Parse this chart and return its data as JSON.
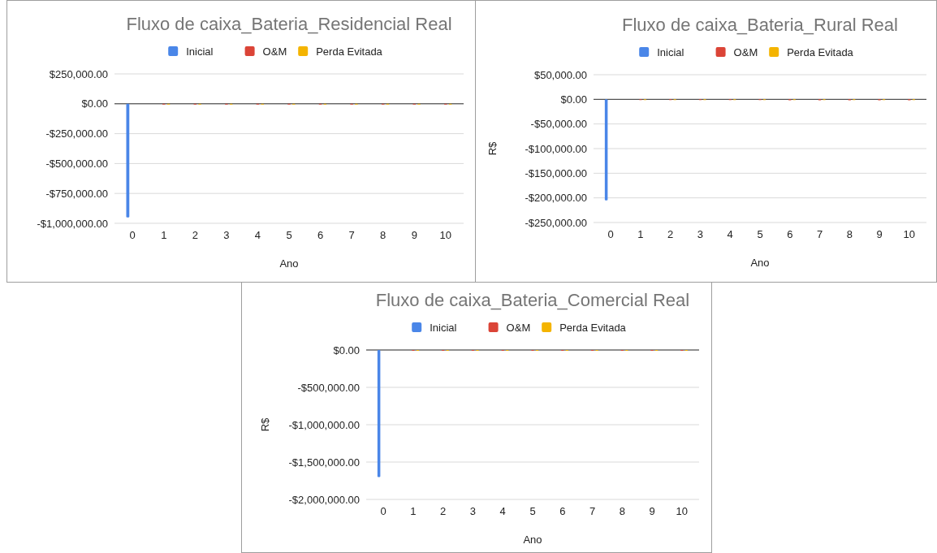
{
  "chart_data": [
    {
      "type": "bar",
      "title": "Fluxo de caixa_Bateria_Residencial Real",
      "xlabel": "Ano",
      "categories": [
        "0",
        "1",
        "2",
        "3",
        "4",
        "5",
        "6",
        "7",
        "8",
        "9",
        "10"
      ],
      "series": [
        {
          "name": "Inicial",
          "color": "#4a86e8",
          "values": [
            -950000,
            null,
            null,
            null,
            null,
            null,
            null,
            null,
            null,
            null,
            null
          ]
        },
        {
          "name": "O&M",
          "color": "#db4437",
          "values": [
            null,
            -3000,
            -3000,
            -3000,
            -3000,
            -3000,
            -3000,
            -3000,
            -3000,
            -3000,
            -3000
          ]
        },
        {
          "name": "Perda Evitada",
          "color": "#f4b400",
          "values": [
            null,
            1000,
            1000,
            1000,
            1000,
            1000,
            1000,
            1000,
            1000,
            1000,
            1000
          ]
        }
      ],
      "ylim": [
        -1000000,
        250000
      ],
      "yticks": [
        {
          "value": 250000,
          "label": "$250,000.00"
        },
        {
          "value": 0,
          "label": "$0.00"
        },
        {
          "value": -250000,
          "label": "-$250,000.00"
        },
        {
          "value": -500000,
          "label": "-$500,000.00"
        },
        {
          "value": -750000,
          "label": "-$750,000.00"
        },
        {
          "value": -1000000,
          "label": "-$1,000,000.00"
        }
      ],
      "grid": "y",
      "legend": "top"
    },
    {
      "type": "bar",
      "title": "Fluxo de caixa_Bateria_Rural Real",
      "xlabel": "Ano",
      "ylabel": "R$",
      "categories": [
        "0",
        "1",
        "2",
        "3",
        "4",
        "5",
        "6",
        "7",
        "8",
        "9",
        "10"
      ],
      "series": [
        {
          "name": "Inicial",
          "color": "#4a86e8",
          "values": [
            -205000,
            null,
            null,
            null,
            null,
            null,
            null,
            null,
            null,
            null,
            null
          ]
        },
        {
          "name": "O&M",
          "color": "#db4437",
          "values": [
            null,
            0,
            0,
            0,
            0,
            0,
            -2000,
            -2000,
            -2000,
            -2000,
            -2000
          ]
        },
        {
          "name": "Perda Evitada",
          "color": "#f4b400",
          "values": [
            null,
            0,
            0,
            0,
            0,
            0,
            0,
            0,
            0,
            0,
            0
          ]
        }
      ],
      "ylim": [
        -250000,
        50000
      ],
      "yticks": [
        {
          "value": 50000,
          "label": "$50,000.00"
        },
        {
          "value": 0,
          "label": "$0.00"
        },
        {
          "value": -50000,
          "label": "-$50,000.00"
        },
        {
          "value": -100000,
          "label": "-$100,000.00"
        },
        {
          "value": -150000,
          "label": "-$150,000.00"
        },
        {
          "value": -200000,
          "label": "-$200,000.00"
        },
        {
          "value": -250000,
          "label": "-$250,000.00"
        }
      ],
      "grid": "y",
      "legend": "top"
    },
    {
      "type": "bar",
      "title": "Fluxo de caixa_Bateria_Comercial Real",
      "xlabel": "Ano",
      "ylabel": "R$",
      "categories": [
        "0",
        "1",
        "2",
        "3",
        "4",
        "5",
        "6",
        "7",
        "8",
        "9",
        "10"
      ],
      "series": [
        {
          "name": "Inicial",
          "color": "#4a86e8",
          "values": [
            -1700000,
            null,
            null,
            null,
            null,
            null,
            null,
            null,
            null,
            null,
            null
          ]
        },
        {
          "name": "O&M",
          "color": "#db4437",
          "values": [
            null,
            0,
            0,
            0,
            0,
            0,
            0,
            0,
            0,
            0,
            0
          ]
        },
        {
          "name": "Perda Evitada",
          "color": "#f4b400",
          "values": [
            null,
            0,
            0,
            0,
            0,
            0,
            0,
            0,
            0,
            0,
            0
          ]
        }
      ],
      "ylim": [
        -2000000,
        0
      ],
      "yticks": [
        {
          "value": 0,
          "label": "$0.00"
        },
        {
          "value": -500000,
          "label": "-$500,000.00"
        },
        {
          "value": -1000000,
          "label": "-$1,000,000.00"
        },
        {
          "value": -1500000,
          "label": "-$1,500,000.00"
        },
        {
          "value": -2000000,
          "label": "-$2,000,000.00"
        }
      ],
      "grid": "y",
      "legend": "top"
    }
  ]
}
